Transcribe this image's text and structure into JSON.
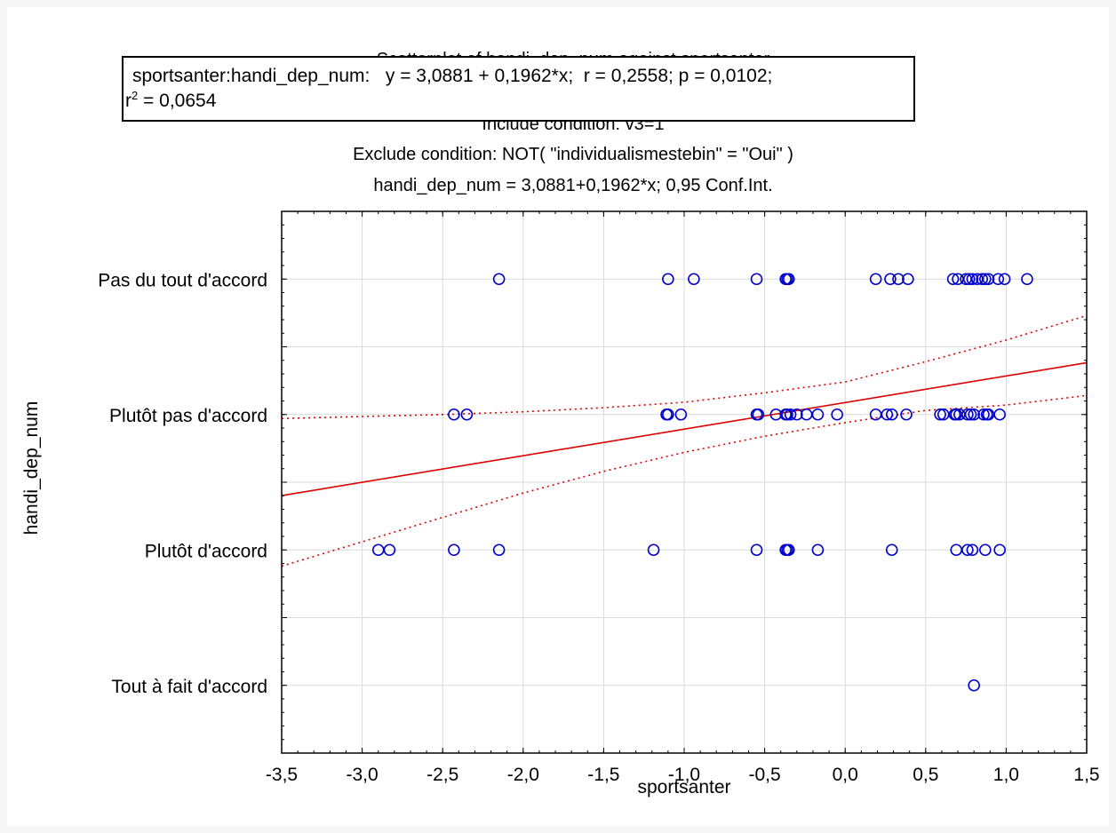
{
  "chart_data": {
    "type": "scatter",
    "title_lines": [
      "Scatterplot of handi_dep_num against sportsanter",
      "Include condition: v3=1",
      "Exclude condition: NOT( \"individualismestebin\" = \"Oui\" )",
      "handi_dep_num = 3,0881+0,1962*x; 0,95 Conf.Int."
    ],
    "xlabel": "sportsanter",
    "ylabel": "handi_dep_num",
    "xlim": [
      -3.5,
      1.5
    ],
    "ylim": [
      0.5,
      4.5
    ],
    "x_ticks": [
      -3.5,
      -3.0,
      -2.5,
      -2.0,
      -1.5,
      -1.0,
      -0.5,
      0.0,
      0.5,
      1.0,
      1.5
    ],
    "x_tick_labels": [
      "-3,5",
      "-3,0",
      "-2,5",
      "-2,0",
      "-1,5",
      "-1,0",
      "-0,5",
      "0,0",
      "0,5",
      "1,0",
      "1,5"
    ],
    "y_categories": [
      {
        "value": 4,
        "label": "Pas du tout d'accord"
      },
      {
        "value": 3,
        "label": "Plutôt pas d'accord"
      },
      {
        "value": 2,
        "label": "Plutôt d'accord"
      },
      {
        "value": 1,
        "label": "Tout à fait d'accord"
      }
    ],
    "grid": true,
    "series": [
      {
        "kind": "points",
        "marker": "open-circle",
        "color": "#0000cc",
        "points": [
          [
            -2.15,
            4
          ],
          [
            -1.1,
            4
          ],
          [
            -0.94,
            4
          ],
          [
            -0.55,
            4
          ],
          [
            -0.37,
            4
          ],
          [
            -0.36,
            4
          ],
          [
            -0.35,
            4
          ],
          [
            0.19,
            4
          ],
          [
            0.28,
            4
          ],
          [
            0.33,
            4
          ],
          [
            0.39,
            4
          ],
          [
            0.67,
            4
          ],
          [
            0.7,
            4
          ],
          [
            0.75,
            4
          ],
          [
            0.77,
            4
          ],
          [
            0.79,
            4
          ],
          [
            0.82,
            4
          ],
          [
            0.85,
            4
          ],
          [
            0.87,
            4
          ],
          [
            0.89,
            4
          ],
          [
            0.95,
            4
          ],
          [
            0.99,
            4
          ],
          [
            1.13,
            4
          ],
          [
            -2.43,
            3
          ],
          [
            -2.35,
            3
          ],
          [
            -1.11,
            3
          ],
          [
            -1.1,
            3
          ],
          [
            -1.02,
            3
          ],
          [
            -0.55,
            3
          ],
          [
            -0.54,
            3
          ],
          [
            -0.43,
            3
          ],
          [
            -0.37,
            3
          ],
          [
            -0.36,
            3
          ],
          [
            -0.34,
            3
          ],
          [
            -0.3,
            3
          ],
          [
            -0.24,
            3
          ],
          [
            -0.17,
            3
          ],
          [
            -0.05,
            3
          ],
          [
            0.19,
            3
          ],
          [
            0.26,
            3
          ],
          [
            0.29,
            3
          ],
          [
            0.38,
            3
          ],
          [
            0.59,
            3
          ],
          [
            0.61,
            3
          ],
          [
            0.68,
            3
          ],
          [
            0.69,
            3
          ],
          [
            0.71,
            3
          ],
          [
            0.76,
            3
          ],
          [
            0.78,
            3
          ],
          [
            0.8,
            3
          ],
          [
            0.86,
            3
          ],
          [
            0.88,
            3
          ],
          [
            0.89,
            3
          ],
          [
            0.96,
            3
          ],
          [
            -2.9,
            2
          ],
          [
            -2.83,
            2
          ],
          [
            -2.43,
            2
          ],
          [
            -2.15,
            2
          ],
          [
            -1.19,
            2
          ],
          [
            -0.55,
            2
          ],
          [
            -0.37,
            2
          ],
          [
            -0.36,
            2
          ],
          [
            -0.35,
            2
          ],
          [
            -0.17,
            2
          ],
          [
            0.29,
            2
          ],
          [
            0.69,
            2
          ],
          [
            0.76,
            2
          ],
          [
            0.79,
            2
          ],
          [
            0.87,
            2
          ],
          [
            0.96,
            2
          ],
          [
            0.8,
            1
          ]
        ]
      },
      {
        "kind": "regression",
        "style": "solid",
        "color": "#dd0000",
        "intercept": 3.0881,
        "slope": 0.1962
      },
      {
        "kind": "ci-band",
        "style": "dotted",
        "color": "#dd0000",
        "upper": [
          [
            -3.5,
            2.97
          ],
          [
            -3.0,
            2.985
          ],
          [
            -2.5,
            3.0
          ],
          [
            -2.0,
            3.02
          ],
          [
            -1.5,
            3.05
          ],
          [
            -1.0,
            3.09
          ],
          [
            -0.5,
            3.16
          ],
          [
            0.0,
            3.24
          ],
          [
            0.5,
            3.39
          ],
          [
            1.0,
            3.55
          ],
          [
            1.5,
            3.73
          ]
        ],
        "lower": [
          [
            -3.5,
            1.88
          ],
          [
            -3.0,
            2.06
          ],
          [
            -2.5,
            2.24
          ],
          [
            -2.0,
            2.42
          ],
          [
            -1.5,
            2.58
          ],
          [
            -1.0,
            2.72
          ],
          [
            -0.5,
            2.84
          ],
          [
            0.0,
            2.94
          ],
          [
            0.5,
            3.03
          ],
          [
            1.0,
            3.07
          ],
          [
            1.5,
            3.14
          ]
        ]
      }
    ],
    "regression_box": {
      "line1": "sportsanter:handi_dep_num:   y = 3,0881 + 0,1962*x;  r = 0,2558; p = 0,0102;",
      "r2_base": "r",
      "r2_sup": "2",
      "r2_value": " = 0,0654"
    }
  }
}
